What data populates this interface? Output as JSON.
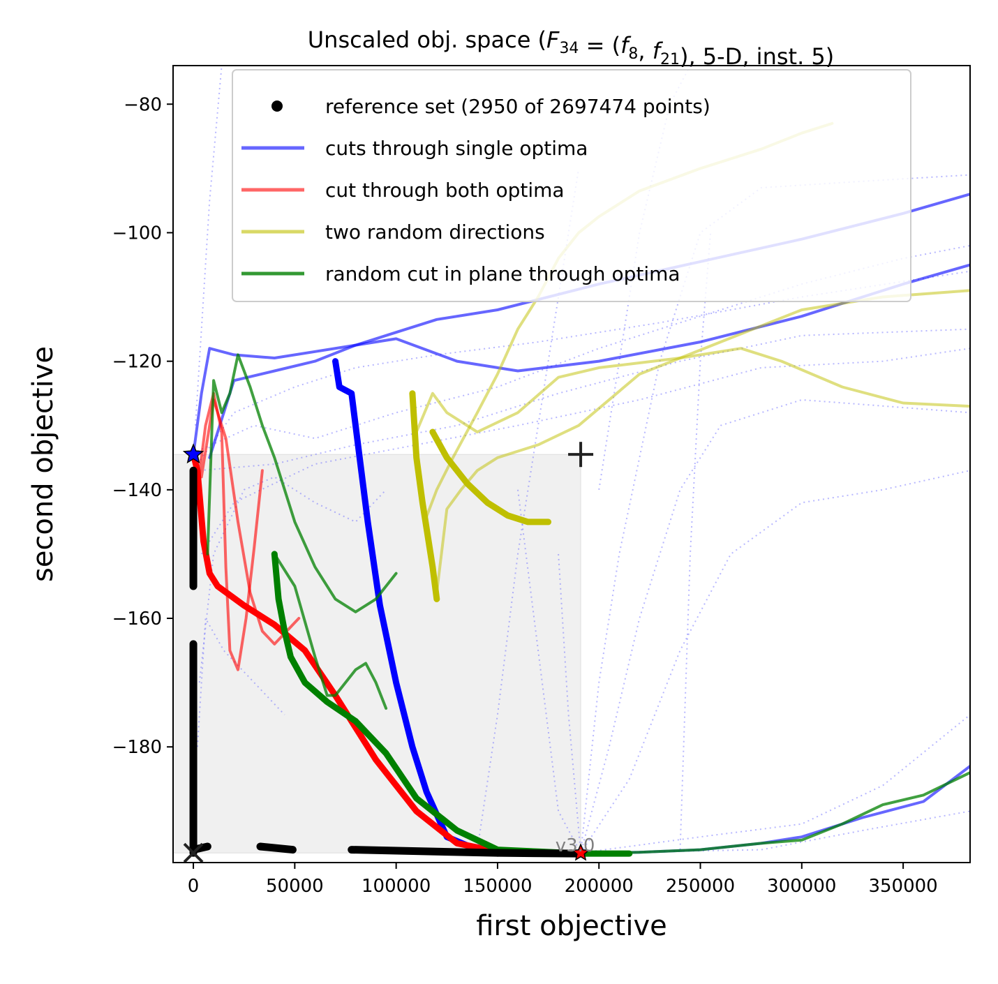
{
  "chart_data": {
    "type": "line",
    "title": "Unscaled obj. space (F34 = (f8, f21), 5-D, inst. 5)",
    "title_parts": {
      "prefix": "Unscaled obj. space (",
      "F": "F",
      "F_sub": "34",
      "eq": " = (",
      "f1": "f",
      "f1_sub": "8",
      "comma": ", ",
      "f2": "f",
      "f2_sub": "21",
      "suffix": "), 5-D, inst. 5)"
    },
    "xlabel": "first objective",
    "ylabel": "second objective",
    "xlim": [
      -10000,
      383000
    ],
    "ylim": [
      -198,
      -74
    ],
    "x_ticks": [
      0,
      50000,
      100000,
      150000,
      200000,
      250000,
      300000,
      350000
    ],
    "x_tick_labels": [
      "0",
      "50000",
      "100000",
      "150000",
      "200000",
      "250000",
      "300000",
      "350000"
    ],
    "y_ticks": [
      -80,
      -100,
      -120,
      -140,
      -160,
      -180
    ],
    "y_tick_labels": [
      "−80",
      "−100",
      "−120",
      "−140",
      "−160",
      "−180"
    ],
    "legend_position": "top-right",
    "legend": [
      {
        "label": "reference set (2950 of 2697474 points)",
        "kind": "marker",
        "color": "#000000"
      },
      {
        "label": "cuts through single optima",
        "kind": "line",
        "color": "#0000ff"
      },
      {
        "label": "cut through both optima",
        "kind": "line",
        "color": "#ff0000"
      },
      {
        "label": "two random directions",
        "kind": "line",
        "color": "#bfbf00"
      },
      {
        "label": "random cut in plane through optima",
        "kind": "line",
        "color": "#008000"
      }
    ],
    "dominated_box": {
      "x": [
        -10000,
        191000
      ],
      "y": [
        -196.5,
        -134.5
      ],
      "color": "#f0f0f0"
    },
    "ideal_point": [
      0,
      -196.5
    ],
    "nadir_point": [
      191000,
      -134.5
    ],
    "optimum_1": [
      0,
      -134.5
    ],
    "optimum_2": [
      191000,
      -196.5
    ],
    "watermark": "v3.0",
    "reference_set": [
      {
        "x": [
          0,
          0
        ],
        "y": [
          -196.5,
          -164
        ]
      },
      {
        "x": [
          0,
          0
        ],
        "y": [
          -155,
          -137
        ]
      },
      {
        "x": [
          0,
          7000
        ],
        "y": [
          -196,
          -195.5
        ]
      },
      {
        "x": [
          33000,
          49000
        ],
        "y": [
          -195.5,
          -196
        ]
      },
      {
        "x": [
          78000,
          150000
        ],
        "y": [
          -196,
          -196.5
        ]
      },
      {
        "x": [
          150000,
          191000
        ],
        "y": [
          -196.5,
          -196.6
        ]
      }
    ],
    "series": [
      {
        "name": "cuts through single optima",
        "color": "#0000ff",
        "alpha": 0.6,
        "width": 4,
        "x": [
          8000,
          20000,
          40000,
          60000,
          80000,
          100000,
          120000,
          150000,
          200000,
          250000,
          300000,
          350000,
          383000
        ],
        "y": [
          -135,
          -123,
          -121.5,
          -120,
          -117.5,
          -115.5,
          -113.5,
          -112,
          -108,
          -104.5,
          -101,
          -97,
          -94
        ]
      },
      {
        "name": "cuts through single optima",
        "color": "#0000ff",
        "alpha": 0.6,
        "width": 4,
        "x": [
          0,
          4000,
          8000,
          20000,
          40000,
          60000,
          80000,
          100000,
          130000,
          160000,
          200000,
          250000,
          300000,
          350000,
          383000
        ],
        "y": [
          -134.5,
          -125,
          -118,
          -119,
          -119.5,
          -118.5,
          -117.5,
          -116.5,
          -120,
          -121.5,
          -120,
          -117,
          -113,
          -108,
          -105
        ]
      },
      {
        "name": "cuts through single optima",
        "color": "#0000ff",
        "alpha": 1,
        "width": 9,
        "x": [
          70000,
          72000,
          75000,
          78000,
          82000,
          86000,
          92000,
          100000,
          108000,
          115000,
          125000,
          140000,
          160000,
          191000
        ],
        "y": [
          -120,
          -124,
          -124.5,
          -125,
          -135,
          -145,
          -158,
          -170,
          -180,
          -187,
          -194,
          -196,
          -196.4,
          -196.6
        ]
      },
      {
        "name": "cuts through single optima",
        "color": "#0000ff",
        "alpha": 0.6,
        "width": 4,
        "x": [
          191000,
          220000,
          250000,
          280000,
          300000,
          330000,
          360000,
          383000
        ],
        "y": [
          -196.5,
          -196.4,
          -196,
          -195,
          -194,
          -191,
          -188.5,
          -183
        ]
      },
      {
        "name": "cut through both optima",
        "color": "#ff0000",
        "alpha": 1,
        "width": 9,
        "x": [
          0,
          2000,
          5000,
          8000,
          12000,
          25000,
          40000,
          55000,
          70000,
          90000,
          110000,
          130000,
          150000,
          191000
        ],
        "y": [
          -134.5,
          -137,
          -148,
          -153,
          -155,
          -158,
          -161,
          -165,
          -172,
          -182,
          -190,
          -195,
          -196.3,
          -196.6
        ]
      },
      {
        "name": "cut through both optima",
        "color": "#ff0000",
        "alpha": 0.6,
        "width": 4,
        "x": [
          2000,
          6000,
          10000,
          14000,
          16000,
          18000,
          22000,
          26000,
          30000,
          34000
        ],
        "y": [
          -140,
          -130,
          -125,
          -131,
          -152,
          -165,
          -168,
          -160,
          -149,
          -137
        ]
      },
      {
        "name": "cut through both optima",
        "color": "#ff0000",
        "alpha": 0.6,
        "width": 4,
        "x": [
          4000,
          10000,
          16000,
          22000,
          28000,
          34000,
          40000,
          46000,
          52000
        ],
        "y": [
          -138,
          -126,
          -132,
          -145,
          -156,
          -162,
          -164,
          -162,
          -160
        ]
      },
      {
        "name": "two random directions",
        "color": "#bfbf00",
        "alpha": 0.5,
        "width": 4,
        "x": [
          114000,
          120000,
          128000,
          140000,
          150000,
          160000,
          170000,
          180000,
          190000,
          200000,
          220000,
          250000,
          280000,
          300000,
          315000
        ],
        "y": [
          -145,
          -140,
          -135,
          -128,
          -122,
          -115,
          -110,
          -104,
          -100,
          -97.5,
          -93.5,
          -90,
          -87,
          -84.5,
          -83
        ]
      },
      {
        "name": "two random directions",
        "color": "#bfbf00",
        "alpha": 0.5,
        "width": 4,
        "x": [
          110000,
          118000,
          125000,
          140000,
          160000,
          180000,
          200000,
          240000,
          270000,
          290000,
          320000,
          350000,
          383000
        ],
        "y": [
          -131,
          -125,
          -128,
          -131,
          -128,
          -122.5,
          -121,
          -119.5,
          -118,
          -120,
          -124,
          -126.5,
          -127
        ]
      },
      {
        "name": "two random directions",
        "color": "#bfbf00",
        "alpha": 0.5,
        "width": 4,
        "x": [
          120000,
          125000,
          132000,
          140000,
          150000,
          170000,
          190000,
          220000,
          260000,
          300000,
          340000,
          383000
        ],
        "y": [
          -156,
          -143,
          -140,
          -137,
          -135,
          -133,
          -130,
          -122,
          -117,
          -112,
          -110,
          -109
        ]
      },
      {
        "name": "two random directions",
        "color": "#bfbf00",
        "alpha": 1,
        "width": 9,
        "x": [
          108000,
          110000,
          113000,
          116000,
          118000,
          120000
        ],
        "y": [
          -125,
          -135,
          -142,
          -148,
          -152,
          -157
        ]
      },
      {
        "name": "two random directions",
        "color": "#bfbf00",
        "alpha": 1,
        "width": 9,
        "x": [
          118000,
          125000,
          135000,
          145000,
          155000,
          165000,
          175000
        ],
        "y": [
          -131,
          -135,
          -139,
          -142,
          -144,
          -145,
          -145
        ]
      },
      {
        "name": "random cut in plane through optima",
        "color": "#008000",
        "alpha": 0.75,
        "width": 4,
        "x": [
          7000,
          10000,
          14000,
          18000,
          22000,
          28000,
          34000,
          40000,
          50000,
          60000,
          70000,
          80000,
          90000,
          100000
        ],
        "y": [
          -150,
          -123,
          -128,
          -125,
          -119,
          -124,
          -130,
          -135,
          -145,
          -152,
          -157,
          -159,
          -157,
          -153
        ]
      },
      {
        "name": "random cut in plane through optima",
        "color": "#008000",
        "alpha": 0.75,
        "width": 4,
        "x": [
          40000,
          50000,
          60000,
          66000,
          70000,
          75000,
          80000,
          85000,
          90000,
          95000
        ],
        "y": [
          -150,
          -155,
          -166,
          -172,
          -172,
          -170,
          -168,
          -167,
          -170,
          -174
        ]
      },
      {
        "name": "random cut in plane through optima",
        "color": "#008000",
        "alpha": 1,
        "width": 9,
        "x": [
          40000,
          42000,
          45000,
          48000,
          55000,
          66000,
          80000,
          95000,
          110000,
          130000,
          150000,
          170000,
          191000,
          215000
        ],
        "y": [
          -150,
          -157,
          -162,
          -166,
          -170,
          -173,
          -176,
          -181,
          -188,
          -193,
          -196,
          -196.3,
          -196.6,
          -196.6
        ]
      },
      {
        "name": "random cut in plane through optima",
        "color": "#008000",
        "alpha": 0.75,
        "width": 4,
        "x": [
          191000,
          220000,
          250000,
          280000,
          300000,
          320000,
          340000,
          360000,
          383000
        ],
        "y": [
          -196.6,
          -196.4,
          -196,
          -195,
          -194.5,
          -192,
          -189,
          -187.5,
          -184
        ]
      }
    ]
  }
}
